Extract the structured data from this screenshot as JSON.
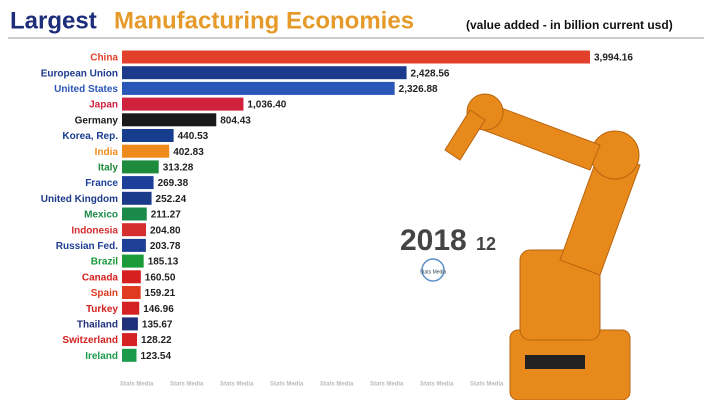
{
  "chart_data": {
    "type": "bar",
    "orientation": "horizontal",
    "title": "Largest",
    "title_highlight": "Manufacturing Economies",
    "subtitle": "(value added - in billion current usd)",
    "date_year": "2018",
    "date_month": "12",
    "watermark": "Stats Media",
    "categories": [
      "China",
      "European Union",
      "United States",
      "Japan",
      "Germany",
      "Korea, Rep.",
      "India",
      "Italy",
      "France",
      "United Kingdom",
      "Mexico",
      "Indonesia",
      "Russian Fed.",
      "Brazil",
      "Canada",
      "Spain",
      "Turkey",
      "Thailand",
      "Switzerland",
      "Ireland"
    ],
    "values": [
      3994.16,
      2428.56,
      2326.88,
      1036.4,
      804.43,
      440.53,
      402.83,
      313.28,
      269.38,
      252.24,
      211.27,
      204.8,
      203.78,
      185.13,
      160.5,
      159.21,
      146.96,
      135.67,
      128.22,
      123.54
    ],
    "value_labels": [
      "3,994.16",
      "2,428.56",
      "2,326.88",
      "1,036.40",
      "804.43",
      "440.53",
      "402.83",
      "313.28",
      "269.38",
      "252.24",
      "211.27",
      "204.80",
      "203.78",
      "185.13",
      "160.50",
      "159.21",
      "146.96",
      "135.67",
      "128.22",
      "123.54"
    ],
    "colors": [
      "#e2402a",
      "#1b3a8c",
      "#2a56b8",
      "#d0213d",
      "#1a1a1a",
      "#173d8e",
      "#ef8a1c",
      "#1d8a3c",
      "#1c3f9a",
      "#1c3a8a",
      "#1a8a4a",
      "#d42e2e",
      "#1f3f96",
      "#1b9a3a",
      "#d62020",
      "#e03a20",
      "#d42222",
      "#1f2f7a",
      "#d42222",
      "#1a9a4a"
    ]
  }
}
